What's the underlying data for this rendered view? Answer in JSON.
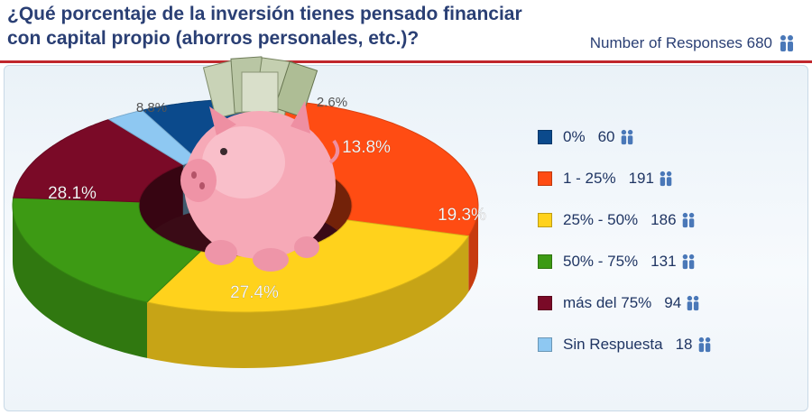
{
  "header": {
    "title": "¿Qué porcentaje de la inversión tienes pensado financiar con capital propio (ahorros personales, etc.)?",
    "responses_label": "Number of Responses 680",
    "responses_icon": "people-icon"
  },
  "colors": {
    "title": "#2a3f74",
    "rule": "#c0272d"
  },
  "legend": [
    {
      "label": "0%",
      "count": "60",
      "color": "#0b4a8c",
      "icon": "people-icon"
    },
    {
      "label": "1 - 25%",
      "count": "191",
      "color": "#ff4c13",
      "icon": "people-icon"
    },
    {
      "label": "25% - 50%",
      "count": "186",
      "color": "#ffd21c",
      "icon": "people-icon"
    },
    {
      "label": "50% - 75%",
      "count": "131",
      "color": "#3d9a14",
      "icon": "people-icon"
    },
    {
      "label": "más del 75%",
      "count": "94",
      "color": "#7a0a27",
      "icon": "people-icon"
    },
    {
      "label": "Sin Respuesta",
      "count": "18",
      "color": "#8ec8f2",
      "icon": "people-icon"
    }
  ],
  "decoration": {
    "center_image": "piggy-bank-with-banknotes"
  },
  "chart_data": {
    "type": "pie",
    "style": "3d-donut",
    "title": "¿Qué porcentaje de la inversión tienes pensado financiar con capital propio (ahorros personales, etc.)?",
    "total_responses": 680,
    "categories": [
      "0%",
      "1 - 25%",
      "25% - 50%",
      "50% - 75%",
      "más del 75%",
      "Sin Respuesta"
    ],
    "values": [
      60,
      191,
      186,
      131,
      94,
      18
    ],
    "percent_labels": [
      "8.8%",
      "28.1%",
      "27.4%",
      "19.3%",
      "13.8%",
      "2.6%"
    ],
    "colors": [
      "#0b4a8c",
      "#ff4c13",
      "#ffd21c",
      "#3d9a14",
      "#7a0a27",
      "#8ec8f2"
    ],
    "legend_position": "right"
  }
}
